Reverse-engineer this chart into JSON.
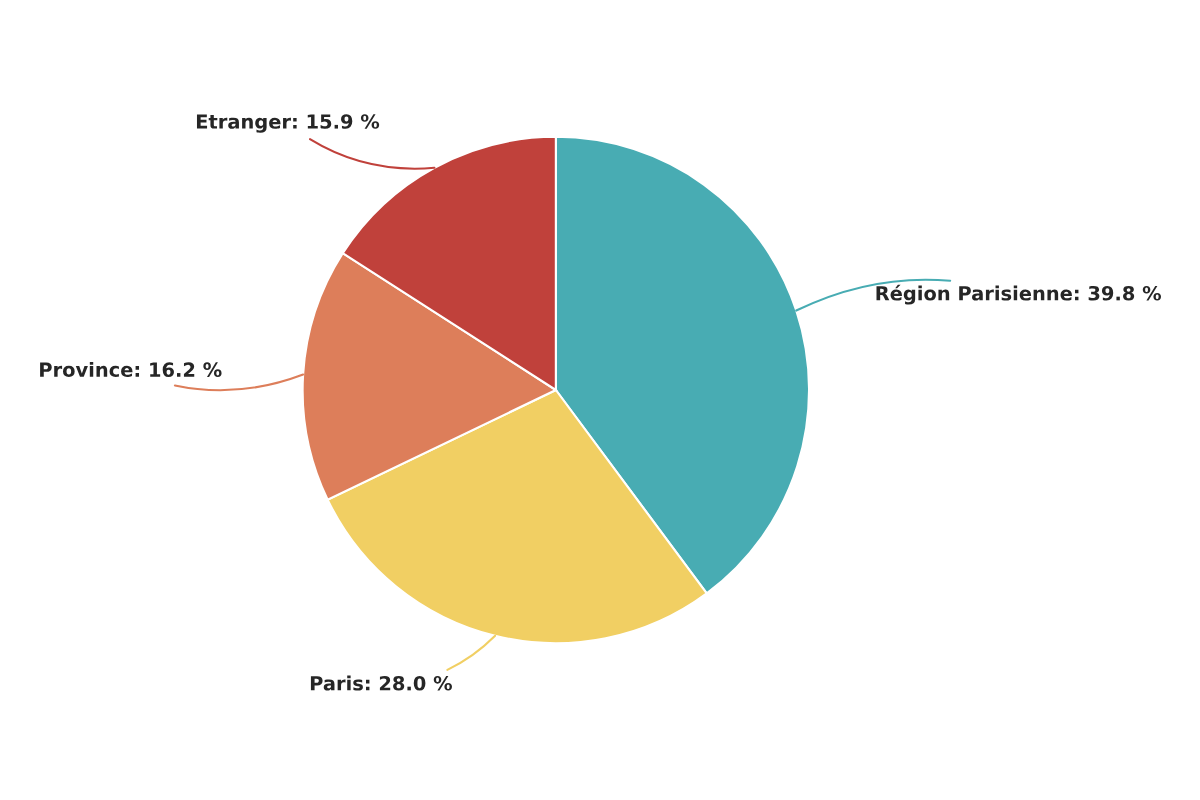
{
  "chart_data": {
    "type": "pie",
    "categories": [
      "Région Parisienne",
      "Paris",
      "Province",
      "Etranger"
    ],
    "values": [
      39.8,
      28.0,
      16.2,
      15.9
    ],
    "value_labels": [
      "39.8 %",
      "28.0 %",
      "16.2 %",
      "15.9 %"
    ],
    "colors": [
      "#48acb3",
      "#f1cf63",
      "#dd7e5a",
      "#c0413b"
    ]
  }
}
